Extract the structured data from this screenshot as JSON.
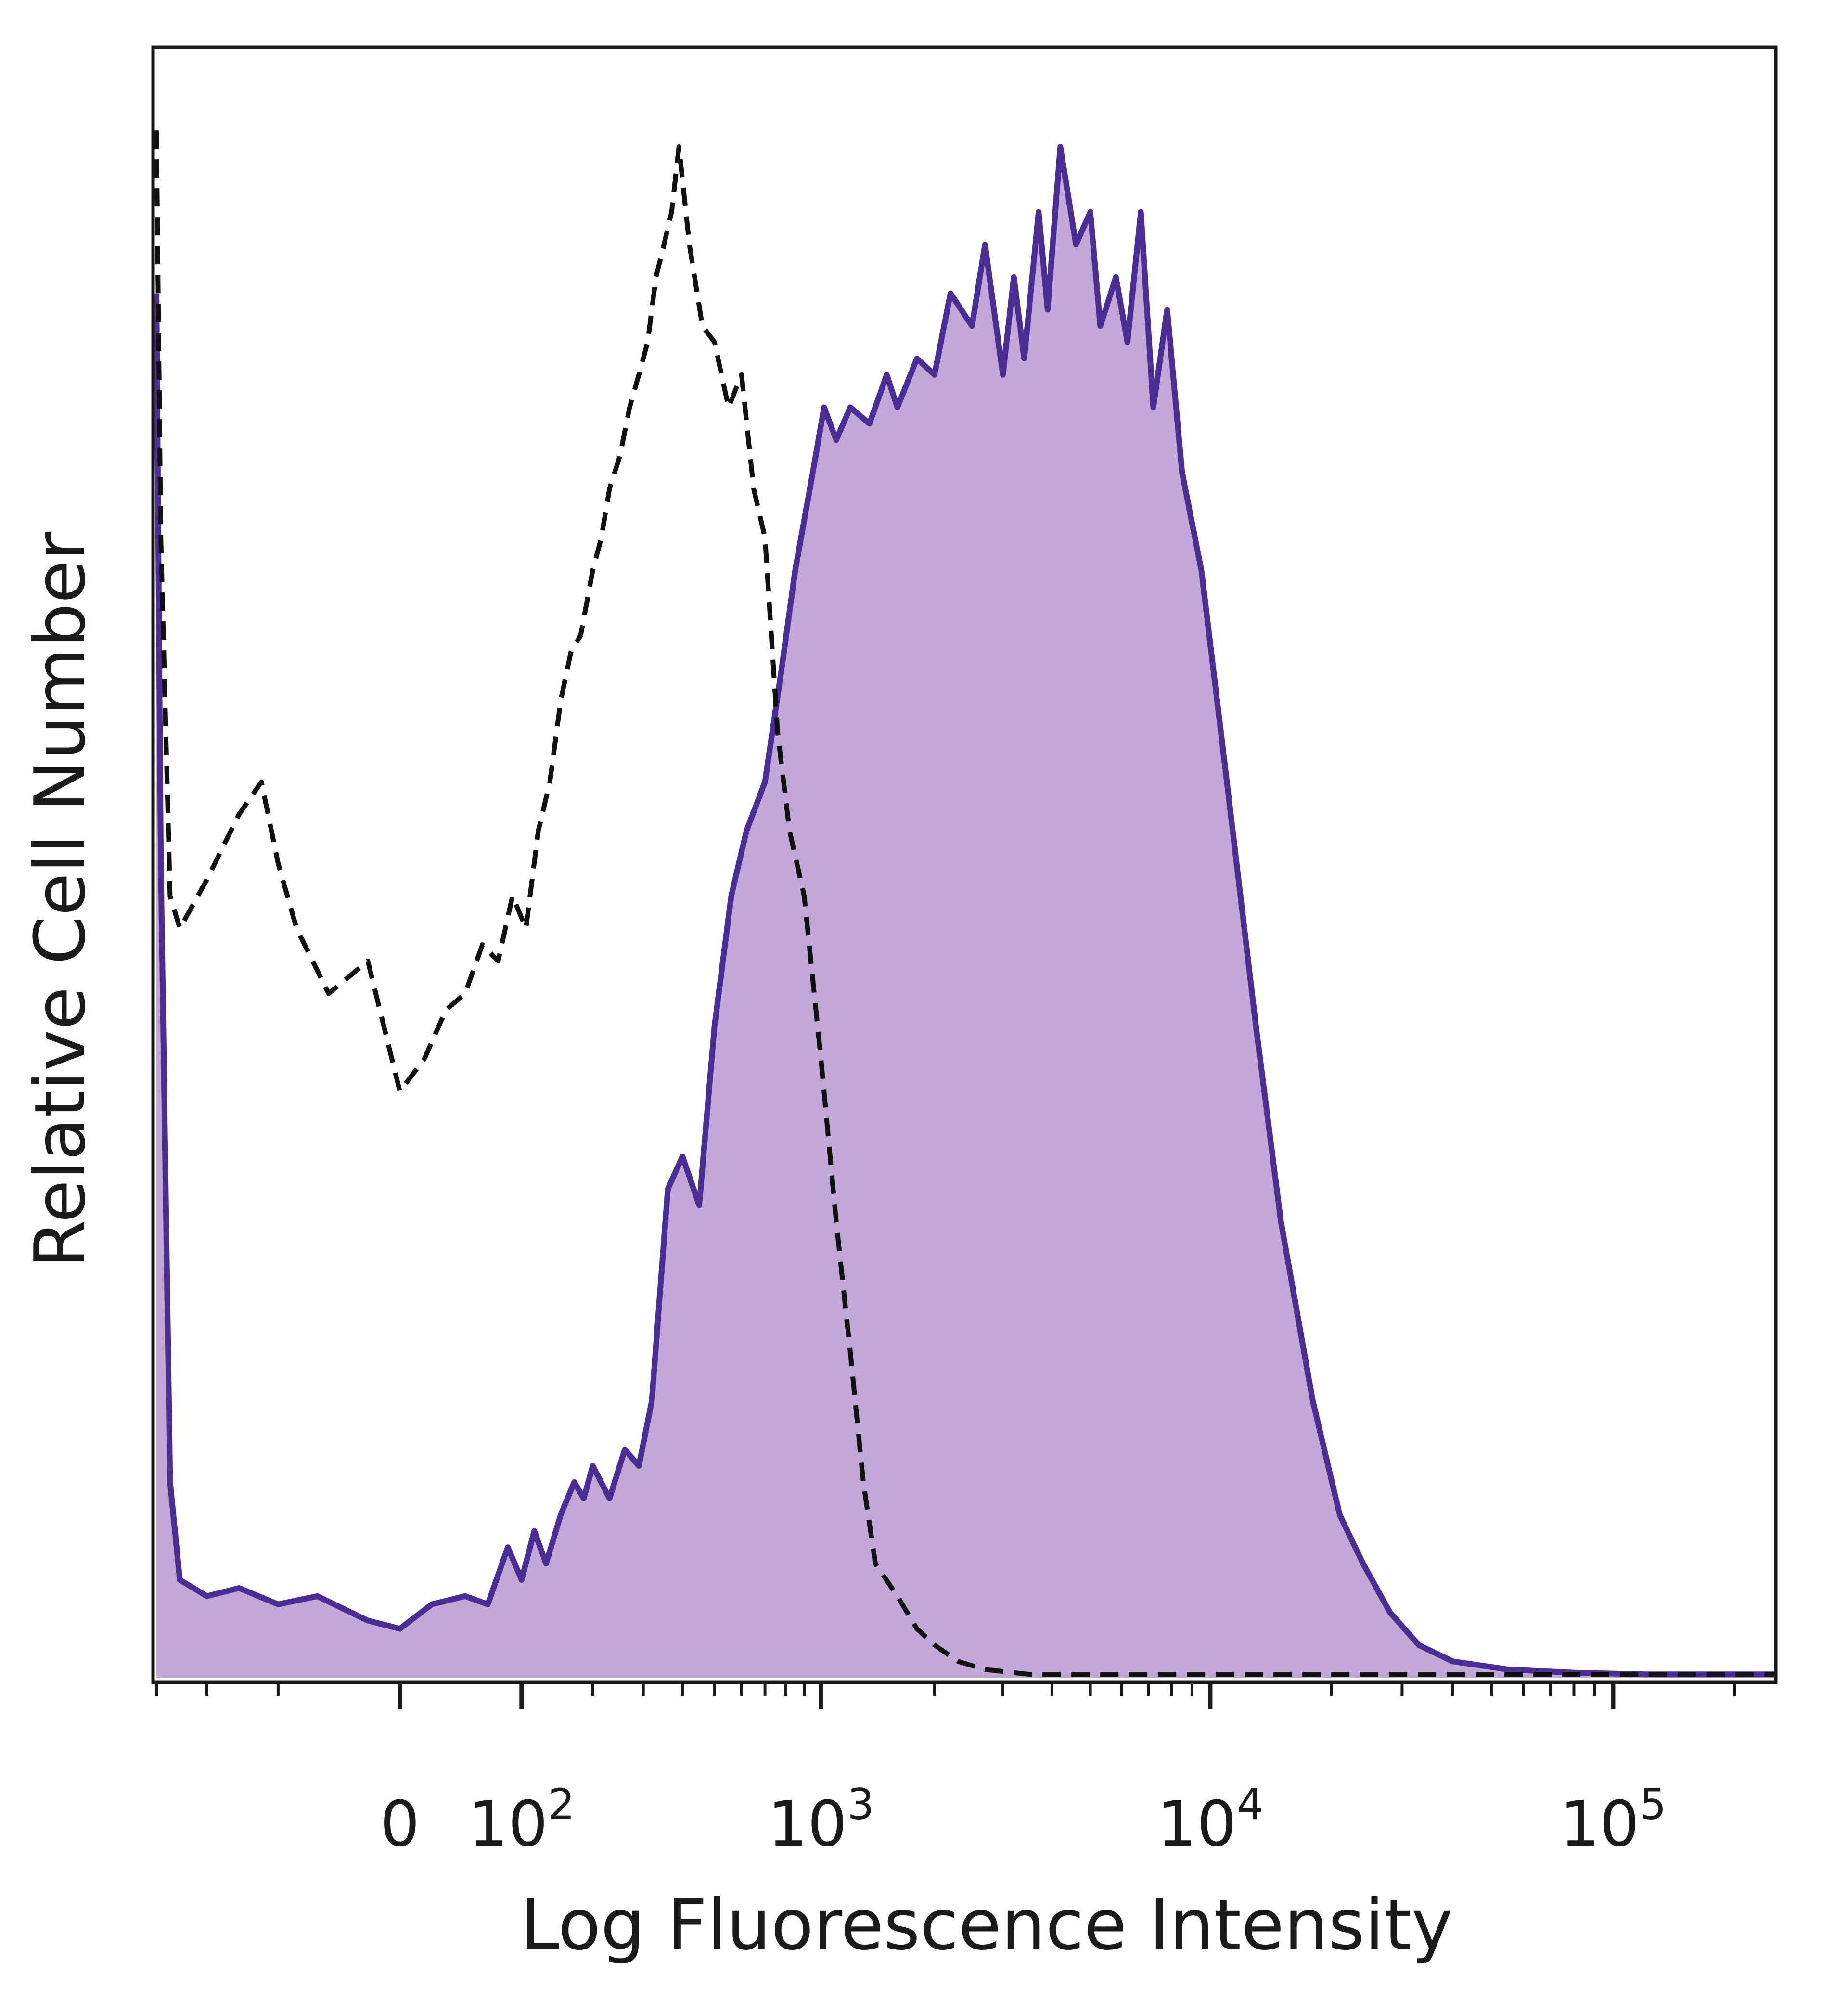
{
  "chart_data": {
    "type": "area",
    "title": "",
    "xlabel": "Log Fluorescence Intensity",
    "ylabel": "Relative Cell Number",
    "x_scale": "biexponential",
    "x_ticks": [
      {
        "value": 0,
        "label": "0",
        "exp": ""
      },
      {
        "value": 100,
        "label": "10",
        "exp": "2"
      },
      {
        "value": 1000,
        "label": "10",
        "exp": "3"
      },
      {
        "value": 10000,
        "label": "10",
        "exp": "4"
      },
      {
        "value": 100000,
        "label": "10",
        "exp": "5"
      }
    ],
    "xlim": [
      -300,
      250000
    ],
    "ylim": [
      0,
      100
    ],
    "grid": false,
    "legend": "none",
    "series": [
      {
        "style": "filled",
        "color": "#4b2d96",
        "fill": "#c2a8d6",
        "points": [
          [
            -300,
            85
          ],
          [
            -290,
            50
          ],
          [
            -270,
            12
          ],
          [
            -250,
            6
          ],
          [
            -200,
            5
          ],
          [
            -150,
            5.5
          ],
          [
            -100,
            4.5
          ],
          [
            -60,
            5
          ],
          [
            -20,
            3.5
          ],
          [
            0,
            3
          ],
          [
            20,
            4.5
          ],
          [
            45,
            5
          ],
          [
            65,
            4.5
          ],
          [
            85,
            8
          ],
          [
            100,
            6
          ],
          [
            115,
            9
          ],
          [
            130,
            7
          ],
          [
            150,
            10
          ],
          [
            170,
            12
          ],
          [
            185,
            11
          ],
          [
            200,
            13
          ],
          [
            230,
            11
          ],
          [
            260,
            14
          ],
          [
            290,
            13
          ],
          [
            320,
            17
          ],
          [
            360,
            30
          ],
          [
            400,
            32
          ],
          [
            450,
            29
          ],
          [
            500,
            40
          ],
          [
            560,
            48
          ],
          [
            620,
            52
          ],
          [
            700,
            55
          ],
          [
            780,
            62
          ],
          [
            850,
            68
          ],
          [
            950,
            74
          ],
          [
            1020,
            78
          ],
          [
            1100,
            76
          ],
          [
            1200,
            78
          ],
          [
            1350,
            77
          ],
          [
            1500,
            80
          ],
          [
            1600,
            78
          ],
          [
            1800,
            81
          ],
          [
            2000,
            80
          ],
          [
            2200,
            85
          ],
          [
            2500,
            83
          ],
          [
            2700,
            88
          ],
          [
            3000,
            80
          ],
          [
            3200,
            86
          ],
          [
            3400,
            81
          ],
          [
            3700,
            90
          ],
          [
            3900,
            84
          ],
          [
            4200,
            94
          ],
          [
            4600,
            88
          ],
          [
            5000,
            90
          ],
          [
            5300,
            83
          ],
          [
            5800,
            86
          ],
          [
            6200,
            82
          ],
          [
            6700,
            90
          ],
          [
            7200,
            78
          ],
          [
            7800,
            84
          ],
          [
            8500,
            74
          ],
          [
            9500,
            68
          ],
          [
            11000,
            55
          ],
          [
            13000,
            40
          ],
          [
            15000,
            28
          ],
          [
            18000,
            17
          ],
          [
            21000,
            10
          ],
          [
            24000,
            7
          ],
          [
            28000,
            4
          ],
          [
            33000,
            2
          ],
          [
            40000,
            1
          ],
          [
            55000,
            0.5
          ],
          [
            80000,
            0.3
          ],
          [
            120000,
            0.2
          ],
          [
            250000,
            0.2
          ]
        ]
      },
      {
        "style": "dashed",
        "color": "#111111",
        "points": [
          [
            -300,
            95
          ],
          [
            -290,
            70
          ],
          [
            -270,
            48
          ],
          [
            -250,
            46
          ],
          [
            -200,
            49
          ],
          [
            -150,
            53
          ],
          [
            -120,
            55
          ],
          [
            -100,
            50
          ],
          [
            -80,
            46
          ],
          [
            -50,
            42
          ],
          [
            -20,
            44
          ],
          [
            0,
            36
          ],
          [
            15,
            38
          ],
          [
            30,
            41
          ],
          [
            45,
            42
          ],
          [
            60,
            45
          ],
          [
            75,
            44
          ],
          [
            90,
            48
          ],
          [
            105,
            46
          ],
          [
            120,
            52
          ],
          [
            135,
            55
          ],
          [
            150,
            60
          ],
          [
            165,
            63
          ],
          [
            180,
            64
          ],
          [
            200,
            68
          ],
          [
            215,
            70
          ],
          [
            230,
            73
          ],
          [
            250,
            75
          ],
          [
            270,
            78
          ],
          [
            290,
            80
          ],
          [
            310,
            82
          ],
          [
            330,
            86
          ],
          [
            350,
            88
          ],
          [
            370,
            90
          ],
          [
            390,
            94
          ],
          [
            420,
            88
          ],
          [
            460,
            83
          ],
          [
            500,
            82
          ],
          [
            550,
            78
          ],
          [
            600,
            80
          ],
          [
            650,
            73
          ],
          [
            700,
            70
          ],
          [
            760,
            58
          ],
          [
            820,
            52
          ],
          [
            900,
            48
          ],
          [
            1000,
            38
          ],
          [
            1100,
            28
          ],
          [
            1200,
            20
          ],
          [
            1300,
            12
          ],
          [
            1400,
            7
          ],
          [
            1600,
            5
          ],
          [
            1800,
            3
          ],
          [
            2000,
            2
          ],
          [
            2300,
            1
          ],
          [
            2700,
            0.5
          ],
          [
            3500,
            0.2
          ],
          [
            6000,
            0.2
          ],
          [
            20000,
            0.2
          ],
          [
            250000,
            0.2
          ]
        ]
      }
    ]
  }
}
